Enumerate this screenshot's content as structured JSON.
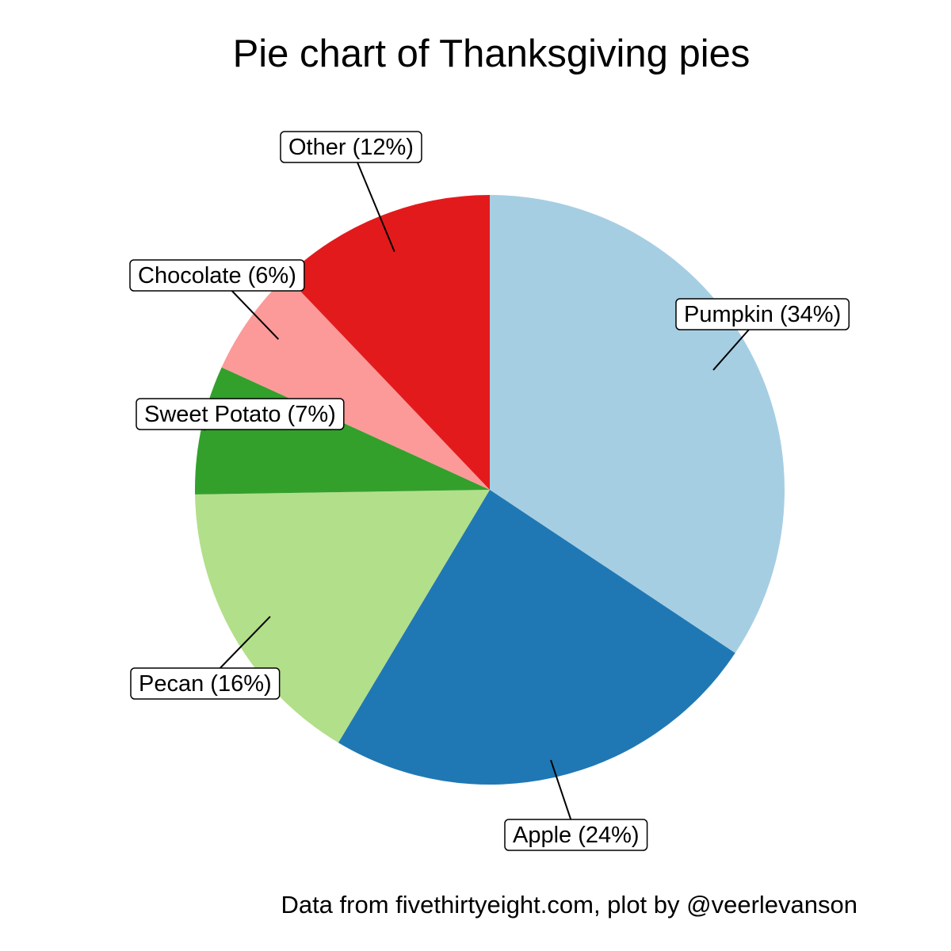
{
  "chart_data": {
    "type": "pie",
    "title": "Pie chart of Thanksgiving pies",
    "caption": "Data from fivethirtyeight.com, plot by @veerlevanson",
    "slices": [
      {
        "name": "Pumpkin",
        "value": 34,
        "label": "Pumpkin (34%)",
        "color": "#a6cee3"
      },
      {
        "name": "Apple",
        "value": 24,
        "label": "Apple (24%)",
        "color": "#1f78b4"
      },
      {
        "name": "Pecan",
        "value": 16,
        "label": "Pecan (16%)",
        "color": "#b2df8a"
      },
      {
        "name": "Sweet Potato",
        "value": 7,
        "label": "Sweet Potato (7%)",
        "color": "#33a02c"
      },
      {
        "name": "Chocolate",
        "value": 6,
        "label": "Chocolate (6%)",
        "color": "#fb9a99"
      },
      {
        "name": "Other",
        "value": 12,
        "label": "Other (12%)",
        "color": "#e31a1c"
      }
    ],
    "direction": "clockwise",
    "start": "top",
    "legend": "none"
  }
}
